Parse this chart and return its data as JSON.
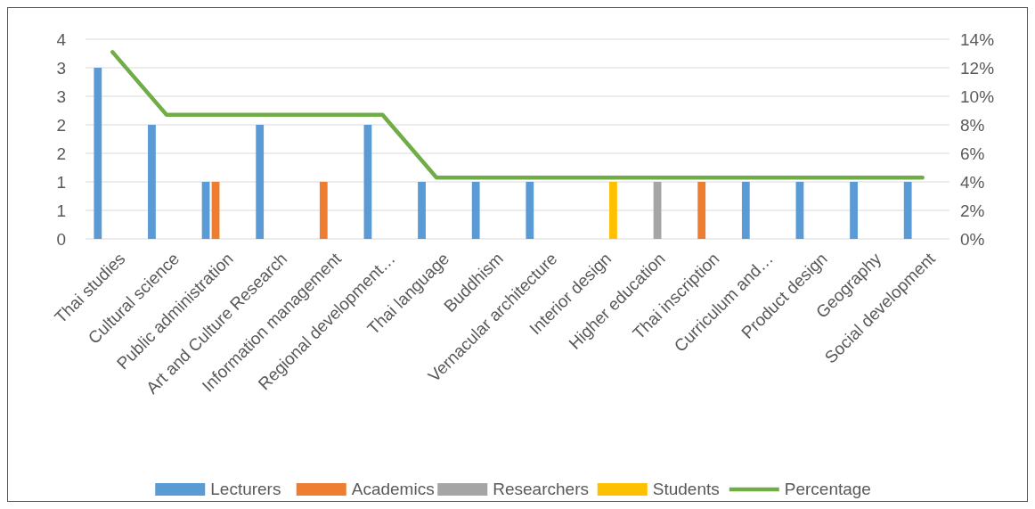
{
  "chart_data": {
    "type": "bar",
    "categories": [
      "Thai studies",
      "Cultural science",
      "Public administration",
      "Art and Culture Research",
      "Information management",
      "Regional development…",
      "Thai language",
      "Buddhism",
      "Vernacular architecture",
      "Interior design",
      "Higher education",
      "Thai inscription",
      "Curriculum and…",
      "Product design",
      "Geography",
      "Social development"
    ],
    "series": [
      {
        "name": "Lecturers",
        "color": "#5b9bd5",
        "values": [
          3,
          2,
          1,
          2,
          null,
          2,
          1,
          1,
          1,
          null,
          null,
          null,
          1,
          1,
          1,
          1
        ]
      },
      {
        "name": "Academics",
        "color": "#ed7d31",
        "values": [
          null,
          null,
          1,
          null,
          1,
          null,
          null,
          null,
          null,
          null,
          null,
          1,
          null,
          null,
          null,
          null
        ]
      },
      {
        "name": "Researchers",
        "color": "#a5a5a5",
        "values": [
          null,
          null,
          null,
          null,
          null,
          null,
          null,
          null,
          null,
          null,
          1,
          null,
          null,
          null,
          null,
          null
        ]
      },
      {
        "name": "Students",
        "color": "#ffc000",
        "values": [
          null,
          null,
          null,
          null,
          null,
          null,
          null,
          null,
          null,
          1,
          null,
          null,
          null,
          null,
          null,
          null
        ]
      },
      {
        "name": "Percentage",
        "color": "#70ad47",
        "type": "line",
        "axis": "y2",
        "values": [
          13.1,
          8.7,
          8.7,
          8.7,
          8.7,
          8.7,
          4.3,
          4.3,
          4.3,
          4.3,
          4.3,
          4.3,
          4.3,
          4.3,
          4.3,
          4.3
        ]
      }
    ],
    "ylim": [
      0,
      3.5
    ],
    "yticks": [
      0,
      {
        "value": 0.5,
        "label": "1"
      },
      1,
      {
        "value": 1.5,
        "label": "2"
      },
      2,
      {
        "value": 2.5,
        "label": "3"
      },
      3,
      {
        "value": 3.5,
        "label": "4"
      }
    ],
    "y2lim": [
      0,
      14
    ],
    "y2ticks": [
      {
        "value": 0,
        "label": "0%"
      },
      {
        "value": 2,
        "label": "2%"
      },
      {
        "value": 4,
        "label": "4%"
      },
      {
        "value": 6,
        "label": "6%"
      },
      {
        "value": 8,
        "label": "8%"
      },
      {
        "value": 10,
        "label": "10%"
      },
      {
        "value": 12,
        "label": "12%"
      },
      {
        "value": 14,
        "label": "14%"
      }
    ],
    "grid": "y",
    "legend": "bottom"
  }
}
